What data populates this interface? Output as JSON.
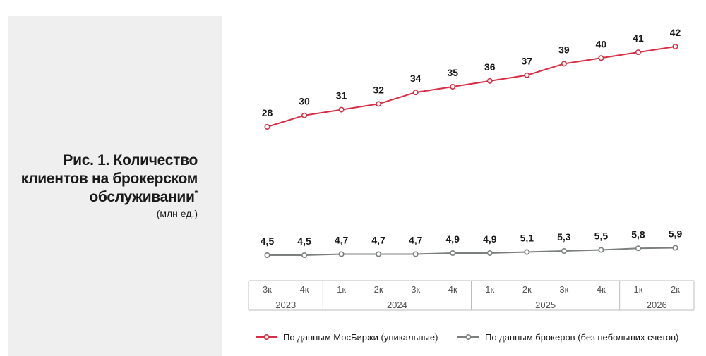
{
  "title": {
    "line1": "Рис. 1. Количество",
    "line2": "клиентов на брокерском",
    "line3": "обслуживании",
    "footnote_mark": "*",
    "subtitle": "(млн ед.)"
  },
  "chart_data": {
    "type": "line",
    "categories": [
      "3к",
      "4к",
      "1к",
      "2к",
      "3к",
      "4к",
      "1к",
      "2к",
      "3к",
      "4к",
      "1к",
      "2к"
    ],
    "year_groups": [
      {
        "label": "2023",
        "count": 2
      },
      {
        "label": "2024",
        "count": 4
      },
      {
        "label": "2025",
        "count": 4
      },
      {
        "label": "2026",
        "count": 2
      }
    ],
    "series": [
      {
        "name": "По данным МосБиржи (уникальные)",
        "values": [
          28,
          30,
          31,
          32,
          34,
          35,
          36,
          37,
          39,
          40,
          41,
          42
        ],
        "labels": [
          "28",
          "30",
          "31",
          "32",
          "34",
          "35",
          "36",
          "37",
          "39",
          "40",
          "41",
          "42"
        ],
        "color": "#d62f45"
      },
      {
        "name": "По данным брокеров (без небольших счетов)",
        "values": [
          4.5,
          4.5,
          4.7,
          4.7,
          4.7,
          4.9,
          4.9,
          5.1,
          5.3,
          5.5,
          5.8,
          5.9
        ],
        "labels": [
          "4,5",
          "4,5",
          "4,7",
          "4,7",
          "4,7",
          "4,9",
          "4,9",
          "5,1",
          "5,3",
          "5,5",
          "5,8",
          "5,9"
        ],
        "color": "#7b807c"
      }
    ],
    "legend_position": "bottom",
    "grid": false
  }
}
